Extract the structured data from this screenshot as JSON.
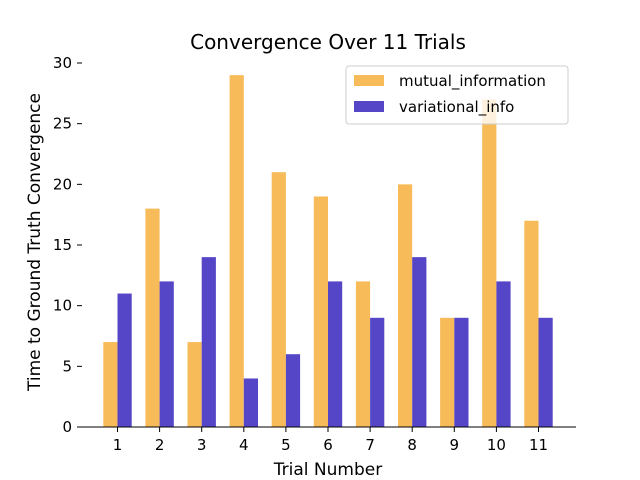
{
  "chart_data": {
    "type": "bar",
    "title": "Convergence Over 11 Trials",
    "xlabel": "Trial Number",
    "ylabel": "Time to Ground Truth Convergence",
    "categories": [
      "1",
      "2",
      "3",
      "4",
      "5",
      "6",
      "7",
      "8",
      "9",
      "10",
      "11"
    ],
    "ylim": [
      0,
      30
    ],
    "yticks": [
      "0",
      "5",
      "10",
      "15",
      "20",
      "25",
      "30"
    ],
    "series": [
      {
        "name": "mutual_information",
        "color": "#f7bb5a",
        "values": [
          7,
          18,
          7,
          29,
          21,
          19,
          12,
          20,
          9,
          27,
          17
        ]
      },
      {
        "name": "variational_info",
        "color": "#5546c8",
        "values": [
          11,
          12,
          14,
          4,
          6,
          12,
          9,
          14,
          9,
          12,
          9
        ]
      }
    ],
    "legend": "top-right",
    "grid": false
  }
}
